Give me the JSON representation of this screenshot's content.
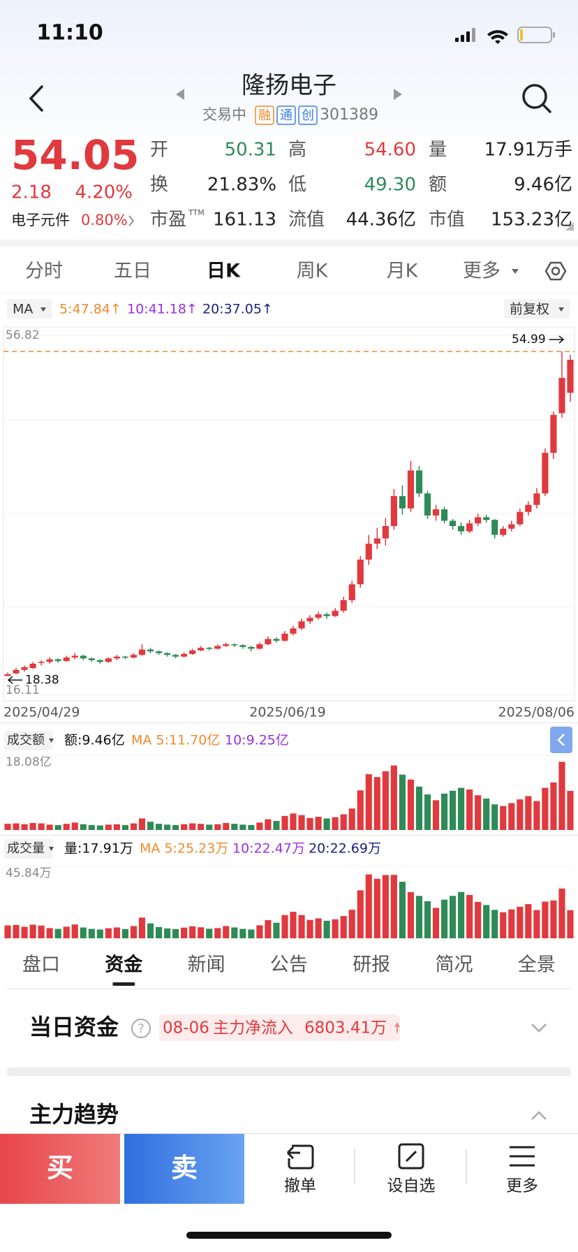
{
  "status_bar": {
    "time": "11:10"
  },
  "header": {
    "title": "隆扬电子",
    "status": "交易中",
    "badges": [
      "融",
      "通",
      "创"
    ],
    "code": "301389"
  },
  "quote": {
    "price": "54.05",
    "change": "2.18",
    "change_pct": "4.20%",
    "sector": "电子元件",
    "sector_pct": "0.80%",
    "fields": [
      {
        "label": "开",
        "value": "50.31",
        "color": "#2e8b57"
      },
      {
        "label": "高",
        "value": "54.60",
        "color": "#e0393e"
      },
      {
        "label": "量",
        "value": "17.91万手",
        "color": "#222"
      },
      {
        "label": "换",
        "value": "21.83%",
        "color": "#222"
      },
      {
        "label": "低",
        "value": "49.30",
        "color": "#2e8b57"
      },
      {
        "label": "额",
        "value": "9.46亿",
        "color": "#222"
      },
      {
        "label": "市盈",
        "sup": "TTM",
        "value": "161.13",
        "color": "#222"
      },
      {
        "label": "流值",
        "value": "44.36亿",
        "color": "#222"
      },
      {
        "label": "市值",
        "value": "153.23亿",
        "color": "#222"
      }
    ]
  },
  "period_tabs": [
    "分时",
    "五日",
    "日K",
    "周K",
    "月K",
    "更多"
  ],
  "ma_legend": {
    "label": "MA",
    "ma5": "5:47.84↑",
    "ma10": "10:41.18↑",
    "ma20": "20:37.05↑",
    "adjust": "前复权"
  },
  "kline": {
    "type": "candlestick",
    "ylim": [
      16.11,
      56.82
    ],
    "yticks": [
      16.11,
      56.82
    ],
    "max_label": 54.99,
    "min_label": 18.38,
    "dates": [
      "2025/04/29",
      "2025/06/19",
      "2025/08/06"
    ],
    "up_color": "#e0393e",
    "down_color": "#2e8b57",
    "candles": [
      [
        18.2,
        18.6,
        18.38,
        18.4
      ],
      [
        18.5,
        19.1,
        18.4,
        18.9
      ],
      [
        18.9,
        19.4,
        18.7,
        19.2
      ],
      [
        19.1,
        19.8,
        19.0,
        19.6
      ],
      [
        19.7,
        20.0,
        19.4,
        19.8
      ],
      [
        19.8,
        20.3,
        19.6,
        20.1
      ],
      [
        20.1,
        20.2,
        19.7,
        19.9
      ],
      [
        19.9,
        20.5,
        19.8,
        20.3
      ],
      [
        20.3,
        20.8,
        20.1,
        20.5
      ],
      [
        20.5,
        20.6,
        20.0,
        20.2
      ],
      [
        20.2,
        20.3,
        19.8,
        20.0
      ],
      [
        20.0,
        20.1,
        19.6,
        19.8
      ],
      [
        19.8,
        20.3,
        19.7,
        20.2
      ],
      [
        20.2,
        20.6,
        20.0,
        20.4
      ],
      [
        20.4,
        20.5,
        20.1,
        20.3
      ],
      [
        20.3,
        20.8,
        20.2,
        20.6
      ],
      [
        20.6,
        21.8,
        20.5,
        21.2
      ],
      [
        21.2,
        21.4,
        20.8,
        21.0
      ],
      [
        21.0,
        21.1,
        20.6,
        20.8
      ],
      [
        20.8,
        20.9,
        20.4,
        20.6
      ],
      [
        20.6,
        20.7,
        20.2,
        20.4
      ],
      [
        20.4,
        20.9,
        20.3,
        20.7
      ],
      [
        20.7,
        21.3,
        20.6,
        21.1
      ],
      [
        21.1,
        21.6,
        21.0,
        21.4
      ],
      [
        21.4,
        21.5,
        21.1,
        21.3
      ],
      [
        21.3,
        21.8,
        21.2,
        21.6
      ],
      [
        21.6,
        22.0,
        21.5,
        21.8
      ],
      [
        21.8,
        21.9,
        21.5,
        21.7
      ],
      [
        21.7,
        21.8,
        21.3,
        21.5
      ],
      [
        21.5,
        21.6,
        21.0,
        21.3
      ],
      [
        21.3,
        22.0,
        21.2,
        21.8
      ],
      [
        21.8,
        22.7,
        21.7,
        22.4
      ],
      [
        22.4,
        22.6,
        22.0,
        22.2
      ],
      [
        22.2,
        23.3,
        22.1,
        23.0
      ],
      [
        23.0,
        23.9,
        22.8,
        23.6
      ],
      [
        23.6,
        24.7,
        23.4,
        24.4
      ],
      [
        24.4,
        25.1,
        24.1,
        24.8
      ],
      [
        24.8,
        25.5,
        24.6,
        25.2
      ],
      [
        25.2,
        25.4,
        24.7,
        25.0
      ],
      [
        25.0,
        25.9,
        24.9,
        25.6
      ],
      [
        25.6,
        27.2,
        25.4,
        26.8
      ],
      [
        26.8,
        29.0,
        26.5,
        28.6
      ],
      [
        28.6,
        31.8,
        28.2,
        31.4
      ],
      [
        31.4,
        34.2,
        30.8,
        33.2
      ],
      [
        33.2,
        35.0,
        32.6,
        33.8
      ],
      [
        33.8,
        36.1,
        33.0,
        35.2
      ],
      [
        35.2,
        39.4,
        34.8,
        38.6
      ],
      [
        38.6,
        39.8,
        36.5,
        37.2
      ],
      [
        37.2,
        42.6,
        36.8,
        41.5
      ],
      [
        41.5,
        42.0,
        38.5,
        38.9
      ],
      [
        38.9,
        39.2,
        36.0,
        36.4
      ],
      [
        36.4,
        37.6,
        35.8,
        37.1
      ],
      [
        37.1,
        37.4,
        35.5,
        35.8
      ],
      [
        35.8,
        36.0,
        34.8,
        35.2
      ],
      [
        35.2,
        35.6,
        34.2,
        34.6
      ],
      [
        34.6,
        35.9,
        34.4,
        35.5
      ],
      [
        35.5,
        36.6,
        35.2,
        36.2
      ],
      [
        36.2,
        36.5,
        35.6,
        35.9
      ],
      [
        35.9,
        36.0,
        33.8,
        34.2
      ],
      [
        34.2,
        35.2,
        34.0,
        34.9
      ],
      [
        34.9,
        35.8,
        34.6,
        35.4
      ],
      [
        35.4,
        37.2,
        35.2,
        36.8
      ],
      [
        36.8,
        38.0,
        36.4,
        37.6
      ],
      [
        37.6,
        39.5,
        37.2,
        38.9
      ],
      [
        38.9,
        44.0,
        38.6,
        43.5
      ],
      [
        43.5,
        48.2,
        42.8,
        47.8
      ],
      [
        48.0,
        54.99,
        47.5,
        52.0
      ],
      [
        50.31,
        54.6,
        49.3,
        54.05
      ]
    ]
  },
  "amount": {
    "label": "成交额",
    "current": "额:9.46亿",
    "ma5": "MA 5:11.70亿",
    "ma10": "10:9.25亿",
    "ylim": [
      0,
      18.08
    ],
    "yticks": [
      {
        "value": 18.08,
        "label": "18.08亿"
      }
    ],
    "values": [
      1.5,
      1.6,
      1.4,
      1.7,
      1.6,
      1.3,
      1.2,
      1.5,
      1.8,
      1.4,
      1.2,
      1.1,
      1.3,
      1.4,
      1.2,
      1.6,
      2.8,
      2.0,
      1.5,
      1.3,
      1.2,
      1.4,
      1.6,
      1.5,
      1.3,
      1.4,
      1.7,
      1.5,
      1.3,
      1.2,
      1.8,
      2.6,
      2.2,
      3.4,
      4.0,
      3.6,
      2.9,
      3.2,
      2.8,
      3.1,
      3.8,
      5.2,
      9.6,
      13.5,
      12.8,
      14.2,
      15.6,
      13.4,
      12.2,
      10.5,
      8.6,
      7.2,
      8.8,
      9.5,
      10.2,
      9.8,
      8.4,
      7.6,
      6.2,
      5.8,
      6.5,
      7.4,
      8.2,
      7.0,
      10.2,
      11.5,
      16.5,
      9.46
    ]
  },
  "volume": {
    "label": "成交量",
    "current": "量:17.91万",
    "ma5": "MA 5:25.23万",
    "ma10": "10:22.47万",
    "ma20": "20:22.69万",
    "ylim": [
      0,
      45.84
    ],
    "yticks": [
      {
        "value": 45.84,
        "label": "45.84万"
      }
    ],
    "values": [
      8.2,
      8.5,
      7.3,
      8.7,
      8.1,
      6.5,
      6.0,
      7.4,
      8.8,
      6.9,
      6.0,
      5.6,
      6.4,
      6.9,
      5.9,
      7.8,
      13.2,
      9.5,
      7.2,
      6.3,
      5.9,
      6.8,
      7.6,
      7.0,
      6.1,
      6.5,
      7.8,
      6.9,
      6.0,
      5.6,
      8.3,
      11.6,
      9.9,
      14.8,
      16.9,
      14.8,
      11.7,
      12.7,
      11.2,
      12.1,
      14.2,
      18.2,
      30.6,
      40.7,
      37.9,
      40.3,
      40.4,
      36.0,
      29.4,
      27.0,
      23.6,
      19.4,
      24.6,
      27.0,
      29.5,
      27.6,
      23.2,
      21.2,
      18.1,
      16.6,
      18.4,
      20.1,
      21.8,
      18.0,
      23.4,
      24.1,
      31.7,
      17.91
    ]
  },
  "info_tabs": [
    "盘口",
    "资金",
    "新闻",
    "公告",
    "研报",
    "简况",
    "全景"
  ],
  "fund": {
    "title": "当日资金",
    "date": "08-06",
    "flow_label": "主力净流入",
    "flow": "6803.41万"
  },
  "trend": {
    "title": "主力趋势"
  },
  "actions": {
    "buy": "买",
    "sell": "卖",
    "cancel": "撤单",
    "watch": "设自选",
    "more": "更多"
  }
}
